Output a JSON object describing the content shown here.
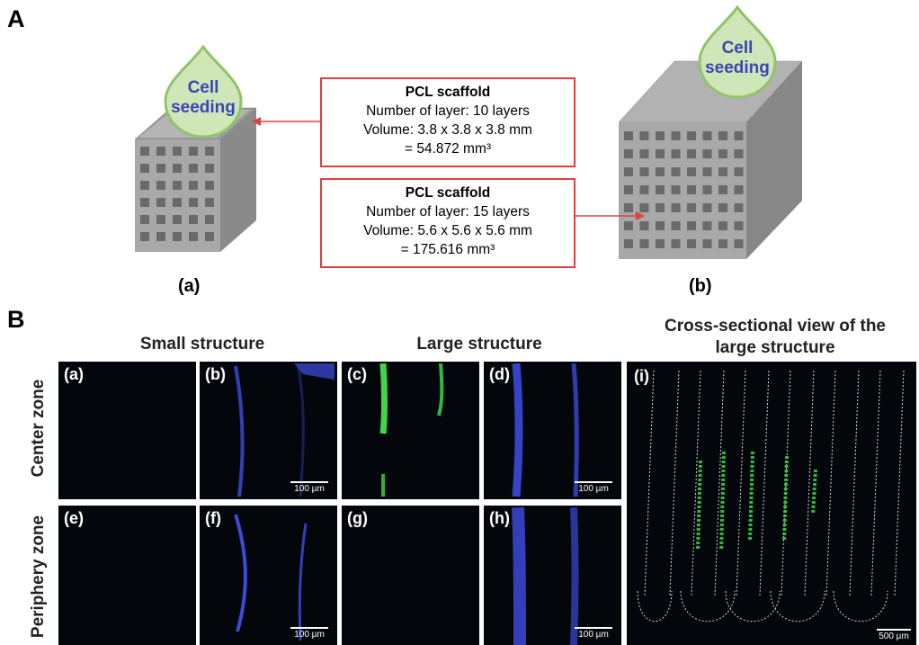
{
  "panel_A": {
    "letter": "A",
    "scaffold_small_caption": "(a)",
    "scaffold_large_caption": "(b)",
    "seeding_label_line1": "Cell",
    "seeding_label_line2": "seeding",
    "box1": {
      "title": "PCL scaffold",
      "line1": "Number of layer: 10 layers",
      "line2": "Volume: 3.8 x 3.8 x 3.8 mm",
      "line3": "= 54.872 mm³"
    },
    "box2": {
      "title": "PCL scaffold",
      "line1": "Number of layer: 15 layers",
      "line2": "Volume: 5.6 x 5.6 x 5.6 mm",
      "line3": "= 175.616 mm³"
    },
    "arrow_color": "#e0403f",
    "drop_color": "#cfe6b8",
    "drop_stroke": "#8fc46b"
  },
  "panel_B": {
    "letter": "B",
    "header_small": "Small structure",
    "header_large": "Large structure",
    "header_cross": "Cross-sectional view of the large structure",
    "row_center": "Center zone",
    "row_periphery": "Periphery zone",
    "images": [
      {
        "label": "(a)",
        "scale": ""
      },
      {
        "label": "(b)",
        "scale": "100 µm"
      },
      {
        "label": "(c)",
        "scale": ""
      },
      {
        "label": "(d)",
        "scale": "100 µm"
      },
      {
        "label": "(e)",
        "scale": ""
      },
      {
        "label": "(f)",
        "scale": "100 µm"
      },
      {
        "label": "(g)",
        "scale": ""
      },
      {
        "label": "(h)",
        "scale": "100 µm"
      }
    ],
    "cross_label": "(i)",
    "cross_scale": "500 µm",
    "stain_blue": "#3b4ad8",
    "stain_green": "#3fd648"
  }
}
